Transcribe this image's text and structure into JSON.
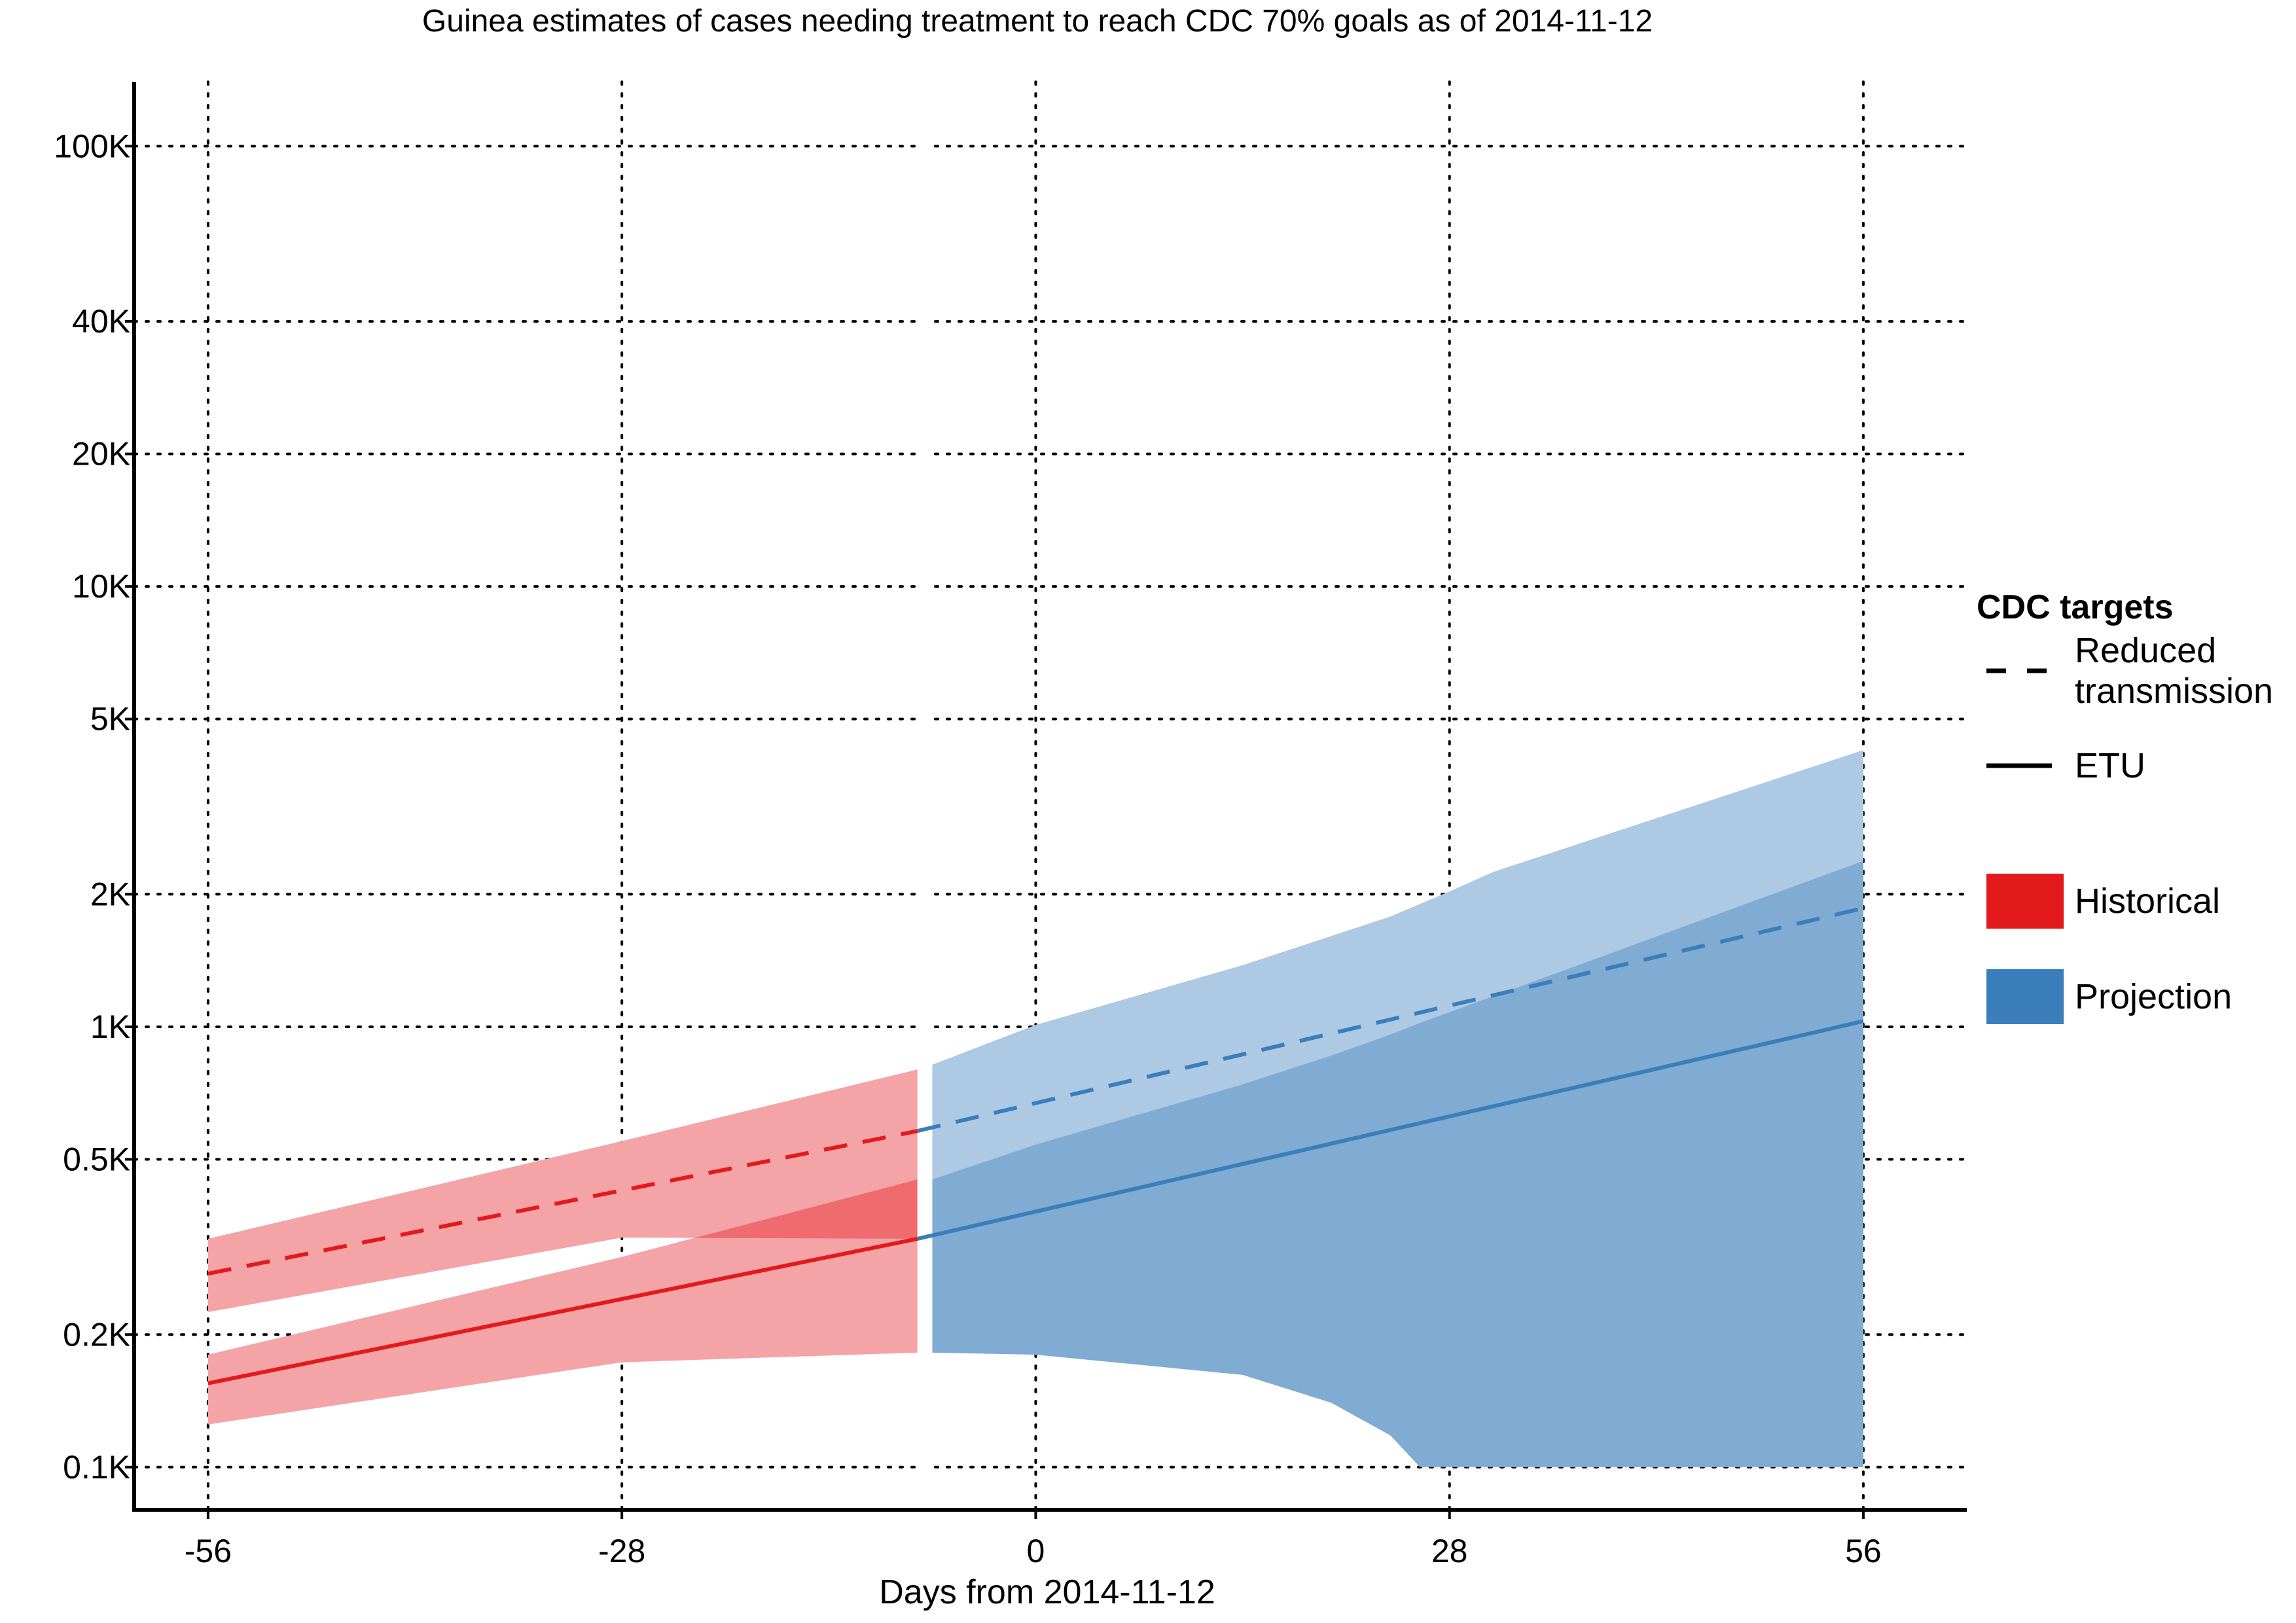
{
  "chart_data": {
    "type": "area",
    "title": "Guinea estimates of cases needing treatment to reach CDC 70% goals as of 2014-11-12",
    "xlabel": "Days from 2014-11-12",
    "ylabel": "",
    "y_scale": "log",
    "xlim": [
      -61,
      63
    ],
    "ylim": [
      80,
      140000
    ],
    "grid": true,
    "x_ticks": [
      {
        "value": -56,
        "label": "-56"
      },
      {
        "value": -28,
        "label": "-28"
      },
      {
        "value": 0,
        "label": "0"
      },
      {
        "value": 28,
        "label": "28"
      },
      {
        "value": 56,
        "label": "56"
      }
    ],
    "y_ticks": [
      {
        "value": 100,
        "label": "0.1K"
      },
      {
        "value": 200,
        "label": "0.2K"
      },
      {
        "value": 500,
        "label": "0.5K"
      },
      {
        "value": 1000,
        "label": "1K"
      },
      {
        "value": 2000,
        "label": "2K"
      },
      {
        "value": 5000,
        "label": "5K"
      },
      {
        "value": 10000,
        "label": "10K"
      },
      {
        "value": 20000,
        "label": "20K"
      },
      {
        "value": 40000,
        "label": "40K"
      },
      {
        "value": 100000,
        "label": "100K"
      }
    ],
    "colors": {
      "historical_line": "#e31a1c",
      "historical_band": "#f4a3a6",
      "historical_overlap": "#ee6b6f",
      "projection_line": "#3a7ebb",
      "projection_band_light": "#adc9e3",
      "projection_band_dark": "#80abd3"
    },
    "series": [
      {
        "group": "Historical",
        "target": "Reduced transmission",
        "style": "dashed",
        "x": [
          -56,
          -8
        ],
        "y": [
          275,
          580
        ]
      },
      {
        "group": "Historical",
        "target": "ETU",
        "style": "solid",
        "x": [
          -56,
          -8
        ],
        "y": [
          155,
          330
        ]
      },
      {
        "group": "Projection",
        "target": "Reduced transmission",
        "style": "dashed",
        "x": [
          -8,
          56
        ],
        "y": [
          580,
          1860
        ]
      },
      {
        "group": "Projection",
        "target": "ETU",
        "style": "solid",
        "x": [
          -8,
          56
        ],
        "y": [
          330,
          1030
        ]
      }
    ],
    "bands": [
      {
        "group": "Historical",
        "target": "Reduced transmission",
        "x": [
          -56,
          -28,
          -8
        ],
        "lower": [
          225,
          332,
          330
        ],
        "upper": [
          330,
          550,
          800
        ]
      },
      {
        "group": "Historical",
        "target": "ETU",
        "x": [
          -56,
          -28,
          -8
        ],
        "lower": [
          125,
          173,
          182
        ],
        "upper": [
          180,
          300,
          450
        ]
      },
      {
        "group": "Projection",
        "target": "Reduced transmission",
        "x": [
          -7,
          0,
          14,
          24,
          28,
          31,
          56
        ],
        "lower": [
          330,
          320,
          280,
          180,
          130,
          100,
          100
        ],
        "upper": [
          820,
          1010,
          1380,
          1780,
          2030,
          2250,
          4250
        ]
      },
      {
        "group": "Projection",
        "target": "ETU",
        "x": [
          -7,
          0,
          14,
          20,
          24,
          26,
          56
        ],
        "lower": [
          182,
          180,
          162,
          140,
          118,
          100,
          100
        ],
        "upper": [
          450,
          540,
          740,
          860,
          960,
          1020,
          2380
        ]
      }
    ],
    "legend": {
      "placement": "right",
      "title": "CDC targets",
      "line_items": [
        {
          "label_lines": [
            "Reduced",
            "transmission"
          ],
          "style": "dashed"
        },
        {
          "label_lines": [
            "ETU"
          ],
          "style": "solid"
        }
      ],
      "fill_items": [
        {
          "label": "Historical",
          "color": "#e31a1c"
        },
        {
          "label": "Projection",
          "color": "#3a7ebb"
        }
      ]
    }
  }
}
